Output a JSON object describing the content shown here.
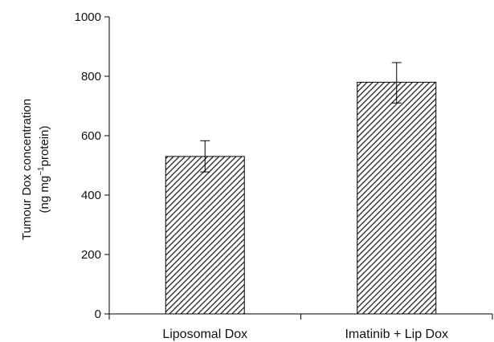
{
  "chart_data": {
    "type": "bar",
    "categories": [
      "Liposomal Dox",
      "Imatinib + Lip Dox"
    ],
    "values": [
      530,
      780
    ],
    "error_bars": [
      [
        478,
        583
      ],
      [
        710,
        846
      ]
    ],
    "ylim": [
      0,
      1000
    ],
    "yticks": [
      "0",
      "200",
      "400",
      "600",
      "800",
      "1000"
    ],
    "ylabel_line1": "Tumour Dox concentration",
    "ylabel_line2_prefix": "(ng  mg",
    "ylabel_line2_sup": "−1",
    "ylabel_line2_suffix": "protein)",
    "bar_pattern": "diagonal-hatch",
    "colors": {
      "hatch": "#222222",
      "bar_fill": "#ffffff",
      "axis": "#000000"
    }
  }
}
